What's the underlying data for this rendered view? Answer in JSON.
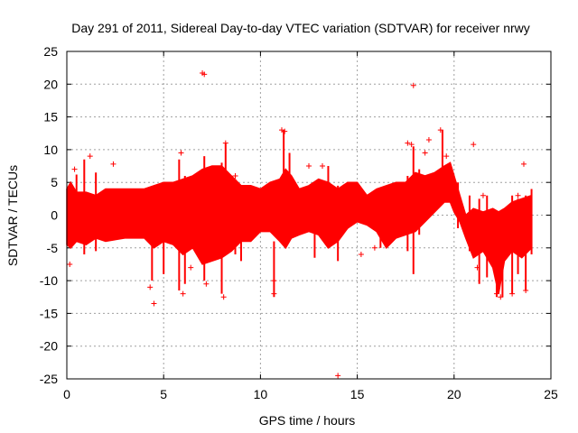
{
  "chart_data": {
    "type": "scatter",
    "title": "Day 291 of 2011, Sidereal Day-to-day VTEC variation (SDTVAR) for receiver nrwy",
    "xlabel": "GPS time / hours",
    "ylabel": "SDTVAR / TECUs",
    "xlim": [
      0,
      25
    ],
    "ylim": [
      -25,
      25
    ],
    "xticks": [
      0,
      5,
      10,
      15,
      20,
      25
    ],
    "yticks": [
      -25,
      -20,
      -15,
      -10,
      -5,
      0,
      5,
      10,
      15,
      20,
      25
    ],
    "grid": true,
    "marker": "+",
    "color": "#ff0000",
    "band": {
      "x": [
        0.0,
        0.2,
        0.5,
        1.0,
        1.5,
        2.0,
        3.0,
        4.0,
        4.5,
        5.0,
        5.5,
        6.0,
        6.5,
        7.0,
        7.5,
        8.0,
        8.5,
        9.0,
        9.5,
        10.0,
        10.5,
        11.0,
        11.3,
        11.6,
        12.0,
        12.5,
        13.0,
        13.5,
        14.0,
        14.5,
        15.0,
        15.5,
        16.0,
        16.5,
        17.0,
        17.5,
        18.0,
        18.5,
        19.0,
        19.5,
        19.8,
        20.0,
        20.3,
        20.6,
        21.0,
        21.5,
        22.0,
        22.3,
        22.6,
        23.0,
        23.5,
        24.0
      ],
      "low": [
        -4.5,
        -5.0,
        -4.0,
        -4.5,
        -3.5,
        -4.0,
        -3.5,
        -3.5,
        -5.0,
        -4.0,
        -4.5,
        -6.0,
        -5.0,
        -7.5,
        -7.0,
        -6.5,
        -5.5,
        -4.0,
        -4.0,
        -2.5,
        -2.5,
        -4.0,
        -5.0,
        -3.5,
        -3.0,
        -2.5,
        -3.0,
        -5.0,
        -4.0,
        -2.0,
        -1.0,
        -1.5,
        -2.5,
        -5.0,
        -3.5,
        -3.0,
        -2.5,
        -1.0,
        0.5,
        2.0,
        2.0,
        0.5,
        -1.0,
        -3.5,
        -6.5,
        -5.5,
        -8.0,
        -12.0,
        -7.0,
        -5.5,
        -6.5,
        -5.0
      ],
      "high": [
        4.0,
        5.0,
        3.5,
        3.5,
        3.0,
        4.0,
        4.0,
        4.0,
        4.5,
        5.0,
        5.0,
        5.5,
        6.0,
        7.0,
        7.5,
        7.5,
        6.0,
        4.5,
        4.5,
        4.0,
        5.0,
        5.5,
        7.0,
        6.0,
        4.0,
        4.5,
        5.5,
        5.0,
        4.0,
        5.0,
        5.0,
        3.0,
        4.0,
        4.5,
        5.0,
        5.0,
        6.5,
        6.0,
        6.5,
        7.5,
        8.0,
        6.0,
        3.0,
        0.0,
        1.0,
        0.5,
        1.0,
        0.5,
        1.0,
        2.0,
        2.5,
        3.0
      ]
    },
    "outliers": [
      {
        "x": 0.15,
        "y": -7.5
      },
      {
        "x": 0.4,
        "y": 7.0
      },
      {
        "x": 1.2,
        "y": 9.0
      },
      {
        "x": 2.4,
        "y": 7.8
      },
      {
        "x": 4.5,
        "y": -13.5
      },
      {
        "x": 4.3,
        "y": -11.0
      },
      {
        "x": 6.0,
        "y": -12.0
      },
      {
        "x": 5.9,
        "y": 9.5
      },
      {
        "x": 7.0,
        "y": 21.7
      },
      {
        "x": 7.1,
        "y": 21.5
      },
      {
        "x": 7.2,
        "y": -10.5
      },
      {
        "x": 8.1,
        "y": -12.5
      },
      {
        "x": 8.2,
        "y": 11.0
      },
      {
        "x": 8.7,
        "y": 6.0
      },
      {
        "x": 10.7,
        "y": -10.0
      },
      {
        "x": 10.7,
        "y": -12.0
      },
      {
        "x": 11.1,
        "y": 13.0
      },
      {
        "x": 11.25,
        "y": 12.8
      },
      {
        "x": 12.5,
        "y": 7.5
      },
      {
        "x": 13.2,
        "y": 7.5
      },
      {
        "x": 14.0,
        "y": -24.5
      },
      {
        "x": 15.2,
        "y": -6.0
      },
      {
        "x": 17.6,
        "y": 11.0
      },
      {
        "x": 17.8,
        "y": 10.8
      },
      {
        "x": 17.9,
        "y": 19.8
      },
      {
        "x": 18.7,
        "y": 11.5
      },
      {
        "x": 19.3,
        "y": 13.0
      },
      {
        "x": 21.0,
        "y": 10.8
      },
      {
        "x": 21.2,
        "y": -8.0
      },
      {
        "x": 21.5,
        "y": 3.0
      },
      {
        "x": 22.4,
        "y": -12.5
      },
      {
        "x": 22.2,
        "y": -12.0
      },
      {
        "x": 23.0,
        "y": -12.0
      },
      {
        "x": 23.3,
        "y": 3.0
      },
      {
        "x": 23.6,
        "y": 7.8
      },
      {
        "x": 23.7,
        "y": -11.5
      },
      {
        "x": 18.5,
        "y": 9.5
      },
      {
        "x": 19.6,
        "y": 9.0
      },
      {
        "x": 15.9,
        "y": -5.0
      },
      {
        "x": 6.4,
        "y": -8.0
      }
    ],
    "spikes": [
      {
        "x": 0.5,
        "y1": -2.0,
        "y2": 6.2
      },
      {
        "x": 0.9,
        "y1": -6.0,
        "y2": 8.5
      },
      {
        "x": 1.5,
        "y1": -5.5,
        "y2": 6.5
      },
      {
        "x": 4.4,
        "y1": -10.0,
        "y2": 3.0
      },
      {
        "x": 5.0,
        "y1": -9.0,
        "y2": 4.0
      },
      {
        "x": 5.8,
        "y1": -11.5,
        "y2": 8.5
      },
      {
        "x": 6.1,
        "y1": -10.5,
        "y2": 6.0
      },
      {
        "x": 7.1,
        "y1": -10.0,
        "y2": 9.0
      },
      {
        "x": 8.0,
        "y1": -12.0,
        "y2": 8.0
      },
      {
        "x": 8.2,
        "y1": -2.0,
        "y2": 11.0
      },
      {
        "x": 8.7,
        "y1": -6.0,
        "y2": 5.5
      },
      {
        "x": 9.0,
        "y1": -7.0,
        "y2": 4.0
      },
      {
        "x": 10.7,
        "y1": -12.5,
        "y2": -4.0
      },
      {
        "x": 11.2,
        "y1": -4.0,
        "y2": 13.0
      },
      {
        "x": 11.5,
        "y1": -2.5,
        "y2": 9.5
      },
      {
        "x": 12.8,
        "y1": -6.5,
        "y2": 4.5
      },
      {
        "x": 13.5,
        "y1": -5.0,
        "y2": 7.5
      },
      {
        "x": 14.0,
        "y1": -7.0,
        "y2": 4.5
      },
      {
        "x": 16.2,
        "y1": -5.0,
        "y2": 2.0
      },
      {
        "x": 17.6,
        "y1": -5.5,
        "y2": 6.0
      },
      {
        "x": 17.9,
        "y1": -9.0,
        "y2": 10.5
      },
      {
        "x": 18.2,
        "y1": -3.0,
        "y2": 7.0
      },
      {
        "x": 19.4,
        "y1": 2.0,
        "y2": 13.0
      },
      {
        "x": 20.2,
        "y1": -2.0,
        "y2": 5.0
      },
      {
        "x": 20.8,
        "y1": -5.5,
        "y2": 3.0
      },
      {
        "x": 21.3,
        "y1": -10.5,
        "y2": 2.5
      },
      {
        "x": 21.7,
        "y1": -9.5,
        "y2": 3.0
      },
      {
        "x": 22.2,
        "y1": -12.5,
        "y2": 0.5
      },
      {
        "x": 22.5,
        "y1": -12.5,
        "y2": -2.0
      },
      {
        "x": 23.0,
        "y1": -12.0,
        "y2": 3.0
      },
      {
        "x": 23.3,
        "y1": -9.0,
        "y2": 2.5
      },
      {
        "x": 23.7,
        "y1": -11.5,
        "y2": 3.0
      },
      {
        "x": 24.0,
        "y1": -6.0,
        "y2": 4.0
      }
    ]
  }
}
